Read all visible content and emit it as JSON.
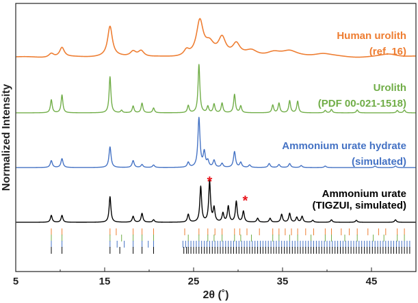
{
  "chart_data": {
    "type": "line",
    "title": "",
    "xlabel": "2θ (˚)",
    "ylabel": "Normalized Intensity",
    "xlim": [
      5,
      50
    ],
    "x_ticks": [
      5,
      15,
      25,
      35,
      45
    ],
    "series": [
      {
        "name": "Human urolith",
        "label_lines": [
          "Human urolith",
          "(ref. 16)"
        ],
        "color": "#ee7d31",
        "offset": 3.05,
        "scale": 0.62,
        "background": 0.08,
        "peaks": [
          {
            "x": 9.0,
            "h": 0.12,
            "w": 0.35
          },
          {
            "x": 10.2,
            "h": 0.28,
            "w": 0.32
          },
          {
            "x": 15.6,
            "h": 0.88,
            "w": 0.32
          },
          {
            "x": 18.2,
            "h": 0.16,
            "w": 0.4
          },
          {
            "x": 19.1,
            "h": 0.18,
            "w": 0.4
          },
          {
            "x": 24.2,
            "h": 0.16,
            "w": 0.35
          },
          {
            "x": 25.7,
            "h": 1.0,
            "w": 0.45
          },
          {
            "x": 26.8,
            "h": 0.32,
            "w": 0.6
          },
          {
            "x": 28.2,
            "h": 0.52,
            "w": 0.5
          },
          {
            "x": 29.8,
            "h": 0.34,
            "w": 0.5
          },
          {
            "x": 31.5,
            "h": 0.16,
            "w": 0.8
          },
          {
            "x": 34.0,
            "h": 0.14,
            "w": 1.0
          },
          {
            "x": 35.8,
            "h": 0.14,
            "w": 1.0
          },
          {
            "x": 39.5,
            "h": 0.08,
            "w": 1.2
          },
          {
            "x": 47.0,
            "h": 0.09,
            "w": 1.2
          }
        ]
      },
      {
        "name": "Urolith",
        "label_lines": [
          "Urolith",
          "(PDF 00-021-1518)"
        ],
        "color": "#70ad47",
        "offset": 2.05,
        "scale": 0.88,
        "background": 0.0,
        "peaks": [
          {
            "x": 9.0,
            "h": 0.27,
            "w": 0.12
          },
          {
            "x": 10.2,
            "h": 0.37,
            "w": 0.12
          },
          {
            "x": 15.6,
            "h": 0.75,
            "w": 0.12
          },
          {
            "x": 16.9,
            "h": 0.05,
            "w": 0.12
          },
          {
            "x": 18.2,
            "h": 0.14,
            "w": 0.12
          },
          {
            "x": 19.2,
            "h": 0.2,
            "w": 0.12
          },
          {
            "x": 20.5,
            "h": 0.1,
            "w": 0.12
          },
          {
            "x": 24.4,
            "h": 0.15,
            "w": 0.12
          },
          {
            "x": 25.6,
            "h": 1.0,
            "w": 0.12
          },
          {
            "x": 26.6,
            "h": 0.13,
            "w": 0.12
          },
          {
            "x": 27.3,
            "h": 0.18,
            "w": 0.12
          },
          {
            "x": 28.2,
            "h": 0.2,
            "w": 0.12
          },
          {
            "x": 29.6,
            "h": 0.38,
            "w": 0.12
          },
          {
            "x": 30.3,
            "h": 0.14,
            "w": 0.12
          },
          {
            "x": 33.9,
            "h": 0.16,
            "w": 0.12
          },
          {
            "x": 34.6,
            "h": 0.2,
            "w": 0.12
          },
          {
            "x": 35.8,
            "h": 0.25,
            "w": 0.12
          },
          {
            "x": 36.7,
            "h": 0.24,
            "w": 0.12
          },
          {
            "x": 39.8,
            "h": 0.05,
            "w": 0.12
          },
          {
            "x": 40.5,
            "h": 0.07,
            "w": 0.12
          },
          {
            "x": 43.4,
            "h": 0.06,
            "w": 0.12
          },
          {
            "x": 47.9,
            "h": 0.05,
            "w": 0.12
          },
          {
            "x": 48.7,
            "h": 0.06,
            "w": 0.12
          }
        ]
      },
      {
        "name": "Ammonium urate hydrate",
        "label_lines": [
          "Ammonium urate hydrate",
          "(simulated)"
        ],
        "color": "#4472c4",
        "offset": 1.05,
        "scale": 0.9,
        "background": 0.0,
        "peaks": [
          {
            "x": 9.0,
            "h": 0.14,
            "w": 0.14
          },
          {
            "x": 10.2,
            "h": 0.18,
            "w": 0.14
          },
          {
            "x": 15.6,
            "h": 0.42,
            "w": 0.14
          },
          {
            "x": 18.2,
            "h": 0.14,
            "w": 0.14
          },
          {
            "x": 19.2,
            "h": 0.06,
            "w": 0.14
          },
          {
            "x": 20.5,
            "h": 0.05,
            "w": 0.14
          },
          {
            "x": 24.4,
            "h": 0.1,
            "w": 0.14
          },
          {
            "x": 25.6,
            "h": 1.0,
            "w": 0.14
          },
          {
            "x": 26.2,
            "h": 0.3,
            "w": 0.14
          },
          {
            "x": 26.6,
            "h": 0.12,
            "w": 0.14
          },
          {
            "x": 27.3,
            "h": 0.14,
            "w": 0.14
          },
          {
            "x": 28.2,
            "h": 0.08,
            "w": 0.14
          },
          {
            "x": 29.6,
            "h": 0.32,
            "w": 0.14
          },
          {
            "x": 30.3,
            "h": 0.1,
            "w": 0.14
          },
          {
            "x": 31.3,
            "h": 0.05,
            "w": 0.14
          },
          {
            "x": 33.5,
            "h": 0.08,
            "w": 0.14
          },
          {
            "x": 34.6,
            "h": 0.06,
            "w": 0.14
          },
          {
            "x": 35.8,
            "h": 0.08,
            "w": 0.14
          },
          {
            "x": 37.1,
            "h": 0.04,
            "w": 0.14
          },
          {
            "x": 39.8,
            "h": 0.03,
            "w": 0.14
          },
          {
            "x": 45.4,
            "h": 0.03,
            "w": 0.14
          },
          {
            "x": 47.7,
            "h": 0.03,
            "w": 0.14
          }
        ]
      },
      {
        "name": "Ammonium urate",
        "label_lines": [
          "Ammonium urate",
          "(TIGZUI, simulated)"
        ],
        "color": "#000000",
        "offset": 0.05,
        "scale": 0.9,
        "background": 0.0,
        "peaks": [
          {
            "x": 9.0,
            "h": 0.14,
            "w": 0.12
          },
          {
            "x": 10.2,
            "h": 0.14,
            "w": 0.12
          },
          {
            "x": 15.6,
            "h": 0.52,
            "w": 0.12
          },
          {
            "x": 18.2,
            "h": 0.12,
            "w": 0.12
          },
          {
            "x": 19.2,
            "h": 0.18,
            "w": 0.12
          },
          {
            "x": 20.5,
            "h": 0.05,
            "w": 0.12
          },
          {
            "x": 24.4,
            "h": 0.16,
            "w": 0.12
          },
          {
            "x": 25.8,
            "h": 0.72,
            "w": 0.12
          },
          {
            "x": 26.8,
            "h": 0.82,
            "w": 0.12
          },
          {
            "x": 27.3,
            "h": 0.28,
            "w": 0.12
          },
          {
            "x": 28.3,
            "h": 0.18,
            "w": 0.12
          },
          {
            "x": 28.9,
            "h": 0.32,
            "w": 0.12
          },
          {
            "x": 29.8,
            "h": 0.42,
            "w": 0.12
          },
          {
            "x": 30.6,
            "h": 0.22,
            "w": 0.12
          },
          {
            "x": 32.2,
            "h": 0.08,
            "w": 0.12
          },
          {
            "x": 33.6,
            "h": 0.08,
            "w": 0.12
          },
          {
            "x": 34.9,
            "h": 0.16,
            "w": 0.12
          },
          {
            "x": 35.8,
            "h": 0.18,
            "w": 0.12
          },
          {
            "x": 36.6,
            "h": 0.1,
            "w": 0.12
          },
          {
            "x": 37.2,
            "h": 0.12,
            "w": 0.12
          },
          {
            "x": 38.4,
            "h": 0.04,
            "w": 0.12
          },
          {
            "x": 40.5,
            "h": 0.05,
            "w": 0.12
          },
          {
            "x": 43.3,
            "h": 0.04,
            "w": 0.12
          },
          {
            "x": 47.7,
            "h": 0.05,
            "w": 0.12
          }
        ]
      }
    ],
    "annotations": [
      {
        "text": "*",
        "x": 26.8,
        "color": "#e8131a"
      },
      {
        "text": "*",
        "x": 30.8,
        "color": "#e8131a"
      }
    ],
    "tick_rows": [
      {
        "color": "#ee7d31",
        "positions": [
          9.0,
          10.2,
          15.6,
          16.3,
          18.2,
          19.2,
          20.5,
          24.0,
          25.6,
          26.6,
          27.4,
          28.2,
          29.6,
          30.2,
          31.0,
          32.4,
          33.9,
          34.6,
          35.3,
          36.0,
          36.7,
          37.6,
          38.5,
          39.8,
          40.5,
          41.6,
          42.5,
          43.4,
          44.6,
          45.8,
          46.6,
          47.9,
          48.7
        ]
      },
      {
        "color": "#70ad47",
        "positions": [
          9.0,
          10.2,
          15.6,
          16.9,
          18.2,
          19.2,
          20.5,
          24.4,
          25.6,
          26.6,
          27.3,
          28.2,
          29.6,
          30.3,
          31.5,
          33.9,
          34.6,
          35.8,
          36.7,
          38.2,
          39.8,
          40.5,
          42.0,
          43.4,
          45.2,
          46.4,
          47.9,
          48.7
        ]
      },
      {
        "color": "#4472c4",
        "positions": [
          9.0,
          10.2,
          15.6,
          16.4,
          17.2,
          18.2,
          19.2,
          19.9,
          20.5,
          23.8,
          24.1,
          24.4,
          24.7,
          25.0,
          25.3,
          25.6,
          25.9,
          26.2,
          26.5,
          26.8,
          27.1,
          27.4,
          27.7,
          28.0,
          28.3,
          28.6,
          28.9,
          29.2,
          29.5,
          29.8,
          30.1,
          30.4,
          30.7,
          31.0,
          31.3,
          31.6,
          31.9,
          32.2,
          32.5,
          32.8,
          33.1,
          33.4,
          33.7,
          34.0,
          34.3,
          34.6,
          34.9,
          35.2,
          35.5,
          35.8,
          36.1,
          36.4,
          36.7,
          37.0,
          37.3,
          37.6,
          37.9,
          38.2,
          38.5,
          38.8,
          39.1,
          39.4,
          39.7,
          40.0,
          40.3,
          40.6,
          40.9,
          41.2,
          41.5,
          41.8,
          42.1,
          42.4,
          42.7,
          43.0,
          43.3,
          43.6,
          43.9,
          44.2,
          44.5,
          44.8,
          45.1,
          45.4,
          45.7,
          46.0,
          46.3,
          46.6,
          46.9,
          47.2,
          47.5,
          47.8,
          48.1,
          48.4,
          48.7,
          49.0,
          49.3
        ]
      },
      {
        "color": "#000000",
        "positions": [
          9.0,
          10.2,
          15.6,
          16.7,
          18.2,
          19.2,
          20.5,
          23.9,
          24.2,
          24.4,
          24.7,
          25.0,
          25.3,
          25.6,
          25.9,
          26.2,
          26.5,
          26.8,
          27.1,
          27.4,
          27.7,
          28.0,
          28.3,
          28.6,
          28.9,
          29.2,
          29.5,
          29.8,
          30.1,
          30.4,
          30.7,
          31.0,
          31.3,
          31.6,
          31.9,
          32.2,
          32.5,
          32.8,
          33.1,
          33.4,
          33.7,
          34.0,
          34.3,
          34.6,
          34.9,
          35.2,
          35.5,
          35.8,
          36.1,
          36.4,
          36.7,
          37.0,
          37.3,
          37.6,
          37.9,
          38.2,
          38.5,
          38.8,
          39.1,
          39.4,
          39.7,
          40.0,
          40.3,
          40.6,
          40.9,
          41.2,
          41.5,
          41.8,
          42.1,
          42.4,
          42.7,
          43.0,
          43.3,
          43.6,
          43.9,
          44.2,
          44.5,
          44.8,
          45.1,
          45.4,
          45.7,
          46.0,
          46.3,
          46.6,
          46.9,
          47.2,
          47.5,
          47.8,
          48.1,
          48.4,
          48.7,
          49.0,
          49.3
        ]
      }
    ]
  }
}
